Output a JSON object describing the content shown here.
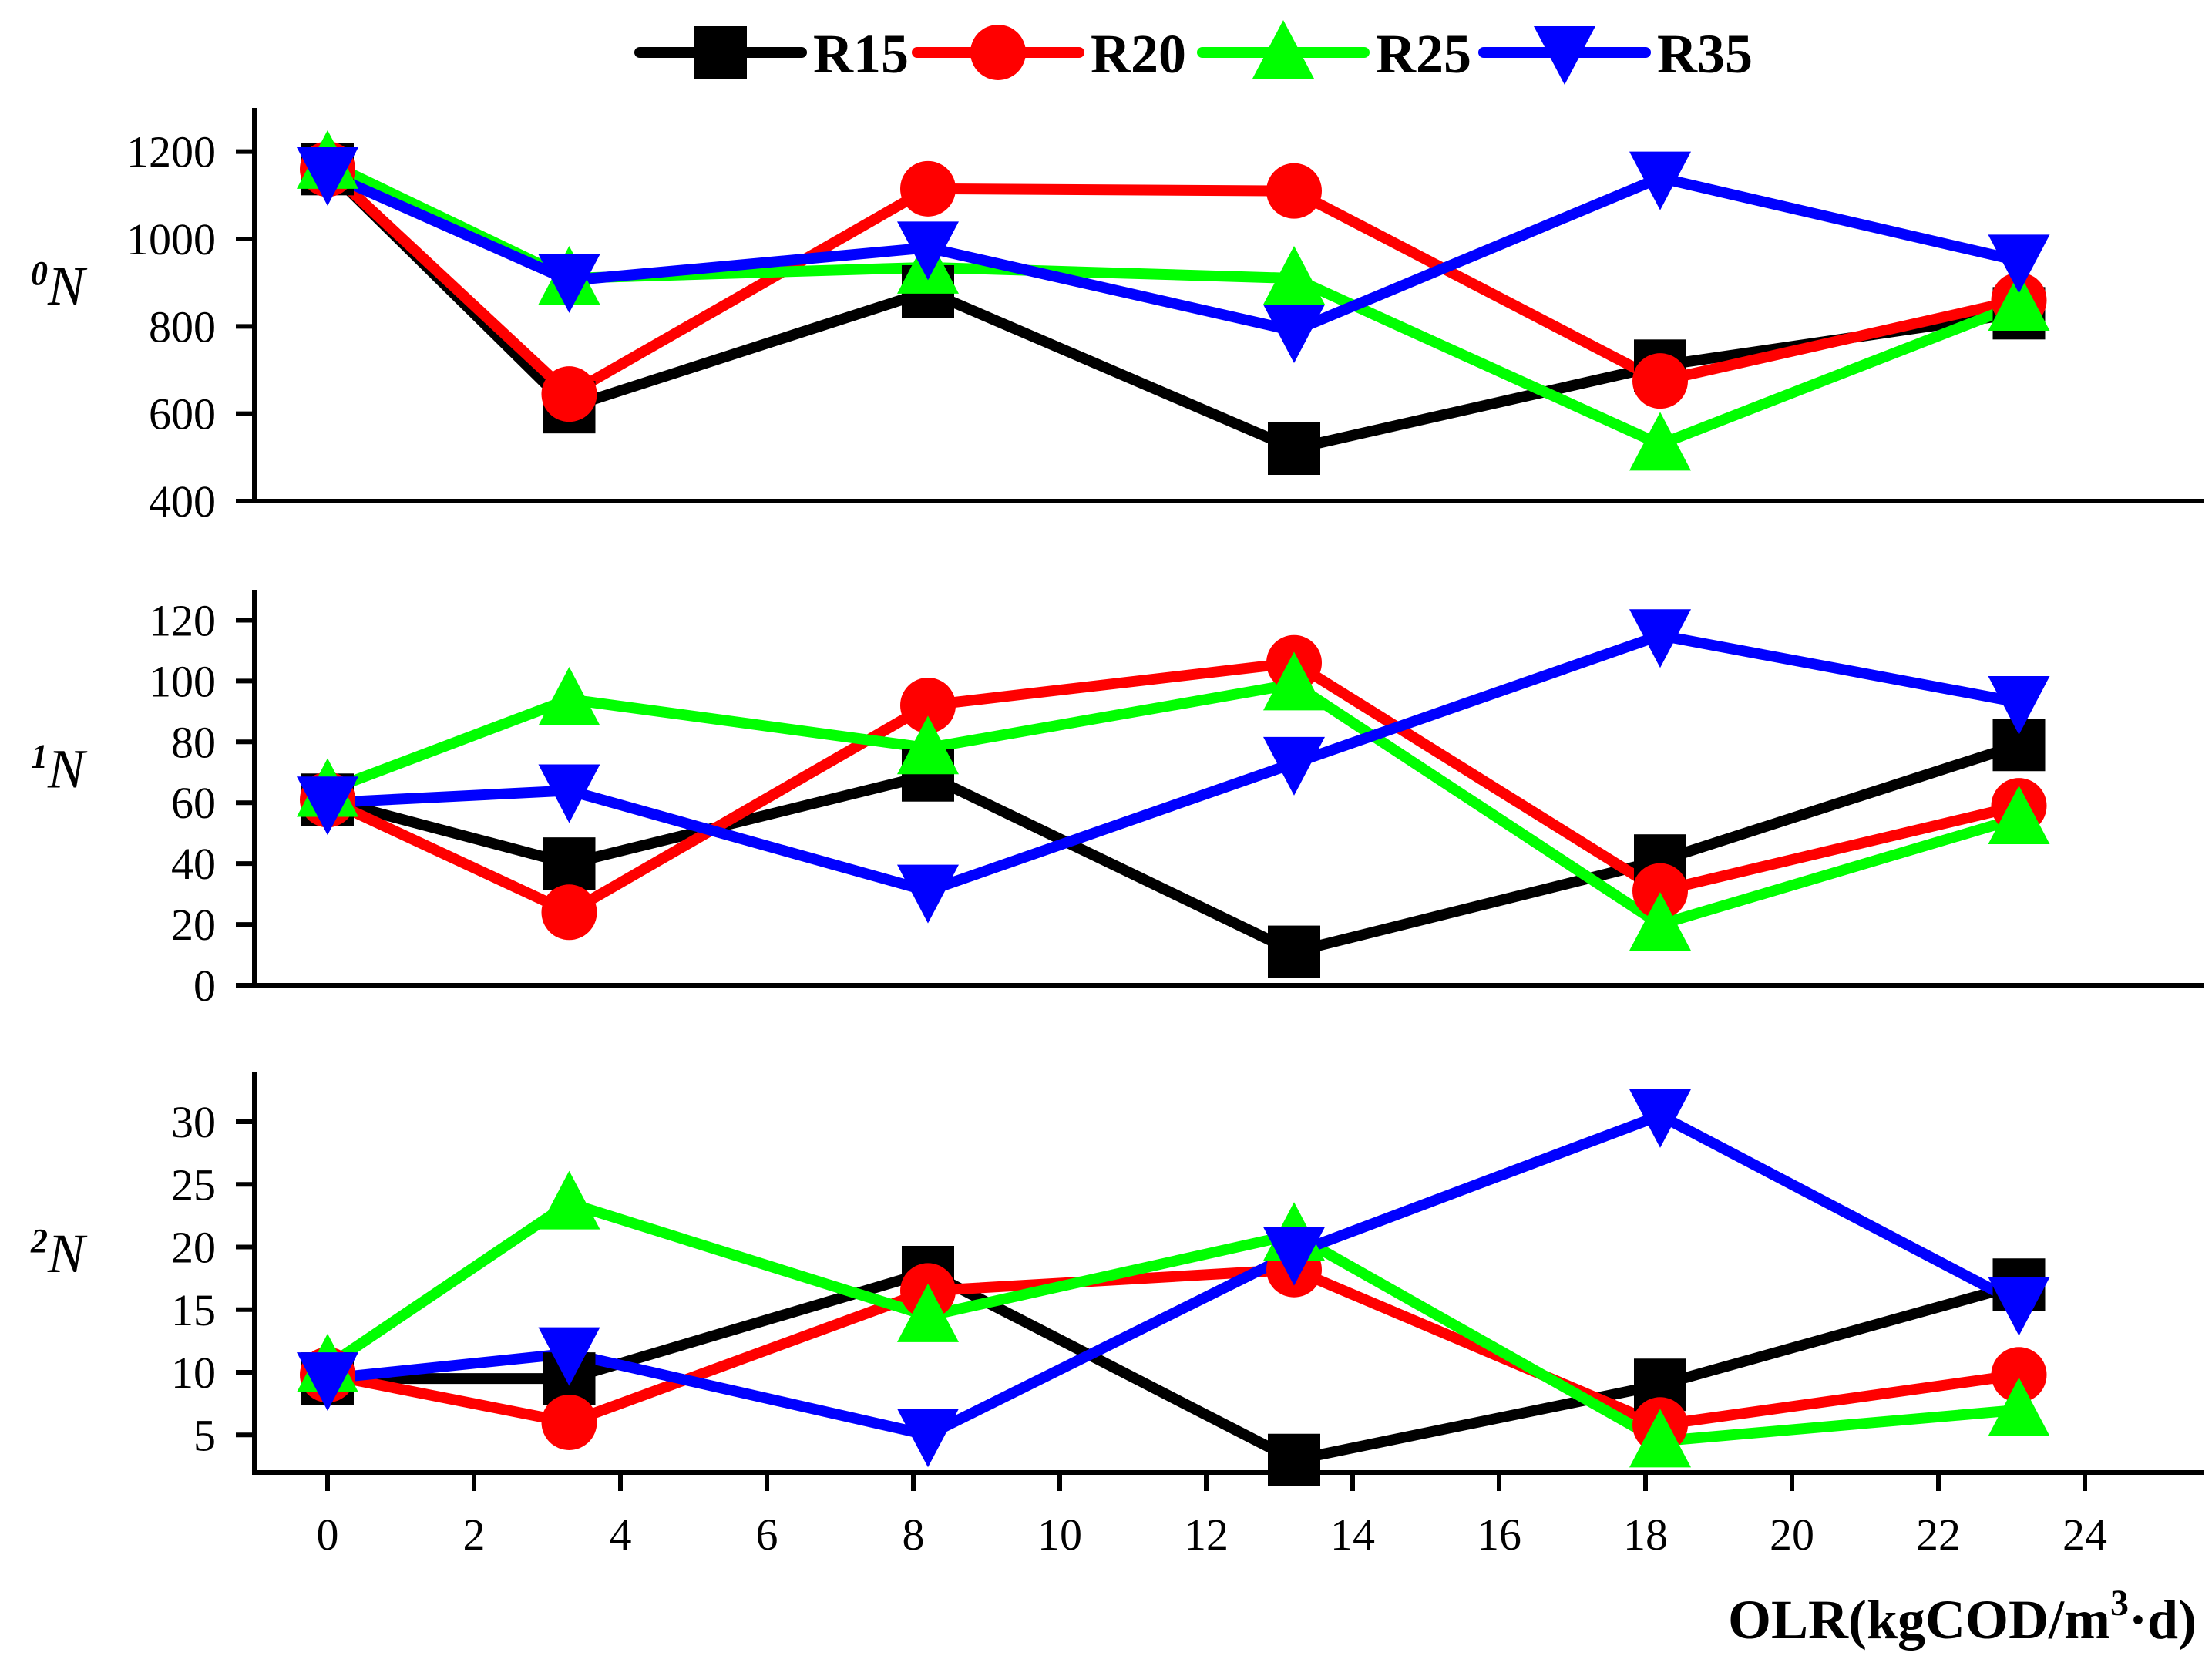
{
  "chart_data": {
    "type": "line",
    "title": "",
    "xlabel": "OLR(kgCOD/m",
    "xlabel_superscript": "3",
    "xlabel_suffix": "·d)",
    "x": [
      0,
      3.3,
      8.2,
      13.2,
      18.2,
      23.1
    ],
    "xlim": [
      -1,
      25
    ],
    "xticks": [
      0,
      2,
      4,
      6,
      8,
      10,
      12,
      14,
      16,
      18,
      20,
      22,
      24
    ],
    "legend": {
      "placement": "top-center",
      "entries": [
        "R15",
        "R20",
        "R25",
        "R35"
      ]
    },
    "series_styles": [
      {
        "name": "R15",
        "color": "#000000",
        "marker": "square"
      },
      {
        "name": "R20",
        "color": "#ff0000",
        "marker": "circle"
      },
      {
        "name": "R25",
        "color": "#00ff00",
        "marker": "triangle-up"
      },
      {
        "name": "R35",
        "color": "#0000ff",
        "marker": "triangle-down"
      }
    ],
    "panels": [
      {
        "ylabel": "N",
        "ylabel_superscript": "0",
        "ylim": [
          400,
          1300
        ],
        "yticks": [
          400,
          600,
          800,
          1000,
          1200
        ],
        "series": [
          {
            "name": "R15",
            "values": [
              1160,
              615,
              880,
              520,
              710,
              830
            ]
          },
          {
            "name": "R20",
            "values": [
              1160,
              645,
              1115,
              1110,
              675,
              860
            ]
          },
          {
            "name": "R25",
            "values": [
              1175,
              910,
              935,
              910,
              530,
              850
            ]
          },
          {
            "name": "R35",
            "values": [
              1150,
              905,
              980,
              790,
              1140,
              950
            ]
          }
        ]
      },
      {
        "ylabel": "N",
        "ylabel_superscript": "1",
        "ylim": [
          0,
          130
        ],
        "yticks": [
          0,
          20,
          40,
          60,
          80,
          100,
          120
        ],
        "series": [
          {
            "name": "R15",
            "values": [
              61,
              40,
              69,
              11,
              41,
              79
            ]
          },
          {
            "name": "R20",
            "values": [
              61,
              24,
              92,
              106,
              31,
              59
            ]
          },
          {
            "name": "R25",
            "values": [
              64,
              94,
              78,
              99,
              20,
              55
            ]
          },
          {
            "name": "R35",
            "values": [
              60,
              64,
              31,
              73,
              115,
              93
            ]
          }
        ]
      },
      {
        "ylabel": "N",
        "ylabel_superscript": "2",
        "ylim": [
          2,
          34
        ],
        "yticks": [
          5,
          10,
          15,
          20,
          25,
          30
        ],
        "series": [
          {
            "name": "R15",
            "values": [
              9.5,
              9.5,
              18,
              3,
              9,
              17
            ]
          },
          {
            "name": "R20",
            "values": [
              9.8,
              6,
              16.5,
              18.2,
              5.8,
              9.8
            ]
          },
          {
            "name": "R25",
            "values": [
              10.5,
              23.5,
              14.5,
              21,
              4.5,
              7
            ]
          },
          {
            "name": "R35",
            "values": [
              9.5,
              11.5,
              5,
              19.5,
              30.5,
              15.5
            ]
          }
        ]
      }
    ]
  }
}
